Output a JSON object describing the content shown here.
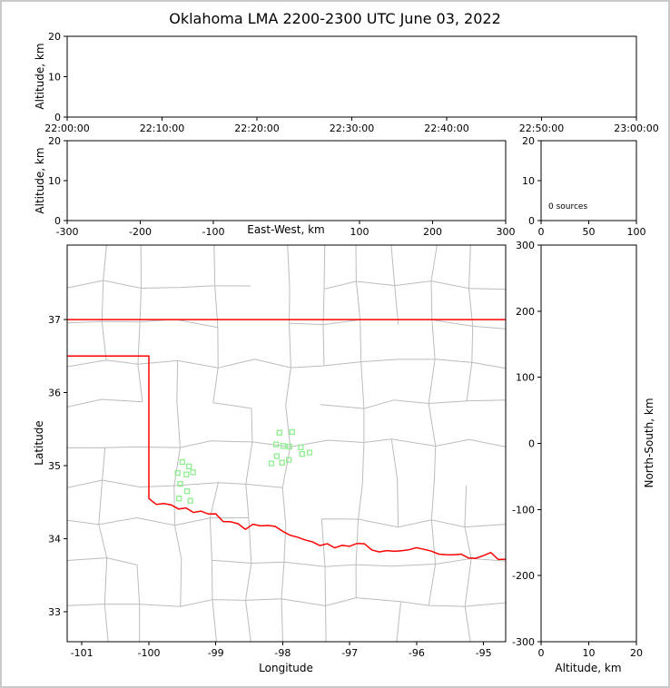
{
  "title": "Oklahoma LMA 2200-2300 UTC June 03, 2022",
  "colors": {
    "background": "#ffffff",
    "frame": "#c9c9c9",
    "panel_border": "#000000",
    "county_lines": "#bcbcbc",
    "state_border": "#ff0000",
    "marker": "#90ee90"
  },
  "chart_data": [
    {
      "id": "time-height",
      "type": "scatter",
      "ylabel": "Altitude, km",
      "ylim": [
        0,
        20
      ],
      "yticks": [
        0,
        10,
        20
      ],
      "xlim": [
        0,
        6
      ],
      "xticks": [
        0,
        1,
        2,
        3,
        4,
        5,
        6
      ],
      "xtick_labels": [
        "22:00:00",
        "22:10:00",
        "22:20:00",
        "22:30:00",
        "22:40:00",
        "22:50:00",
        "23:00:00"
      ],
      "points": []
    },
    {
      "id": "east-west-height",
      "type": "scatter",
      "xlabel": "East-West, km",
      "ylabel": "Altitude, km",
      "xlim": [
        -300,
        300
      ],
      "xticks": [
        -300,
        -200,
        -100,
        100,
        200,
        300
      ],
      "ylim": [
        0,
        20
      ],
      "yticks": [
        0,
        10,
        20
      ],
      "points": []
    },
    {
      "id": "altitude-histogram",
      "type": "line",
      "annotation": "0 sources",
      "xlim": [
        0,
        100
      ],
      "xticks": [
        0,
        50,
        100
      ],
      "ylim": [
        0,
        20
      ],
      "yticks": [
        0,
        10,
        20
      ],
      "points": []
    },
    {
      "id": "plan-view-map",
      "type": "scatter",
      "xlabel": "Longitude",
      "ylabel": "Latitude",
      "xlim": [
        -101.22,
        -94.67
      ],
      "xticks": [
        -101,
        -100,
        -99,
        -98,
        -97,
        -96,
        -95
      ],
      "ylim": [
        32.59,
        38.02
      ],
      "yticks": [
        33,
        34,
        35,
        36,
        37
      ],
      "marker": "open-square",
      "state_border": {
        "north_lat": 37.0,
        "panhandle_south_lat": 36.5,
        "west_lon": -100.0,
        "river_start_lat": 34.55,
        "river_mid_lat": 33.9,
        "river_end_lat": 33.72
      },
      "points": [
        [
          -98.05,
          35.45
        ],
        [
          -97.86,
          35.46
        ],
        [
          -98.1,
          35.29
        ],
        [
          -97.99,
          35.27
        ],
        [
          -97.9,
          35.26
        ],
        [
          -97.73,
          35.25
        ],
        [
          -98.09,
          35.13
        ],
        [
          -98.17,
          35.03
        ],
        [
          -98.01,
          35.04
        ],
        [
          -97.91,
          35.08
        ],
        [
          -97.71,
          35.16
        ],
        [
          -97.6,
          35.18
        ],
        [
          -99.5,
          35.05
        ],
        [
          -99.4,
          34.99
        ],
        [
          -99.57,
          34.9
        ],
        [
          -99.44,
          34.88
        ],
        [
          -99.34,
          34.91
        ],
        [
          -99.53,
          34.75
        ],
        [
          -99.43,
          34.65
        ],
        [
          -99.55,
          34.55
        ],
        [
          -99.38,
          34.52
        ]
      ]
    },
    {
      "id": "north-south-height",
      "type": "scatter",
      "xlabel": "Altitude, km",
      "ylabel": "North-South, km",
      "xlim": [
        0,
        20
      ],
      "xticks": [
        0,
        10,
        20
      ],
      "ylim": [
        -300,
        300
      ],
      "yticks": [
        -300,
        -200,
        -100,
        0,
        100,
        200,
        300
      ],
      "points": []
    }
  ]
}
